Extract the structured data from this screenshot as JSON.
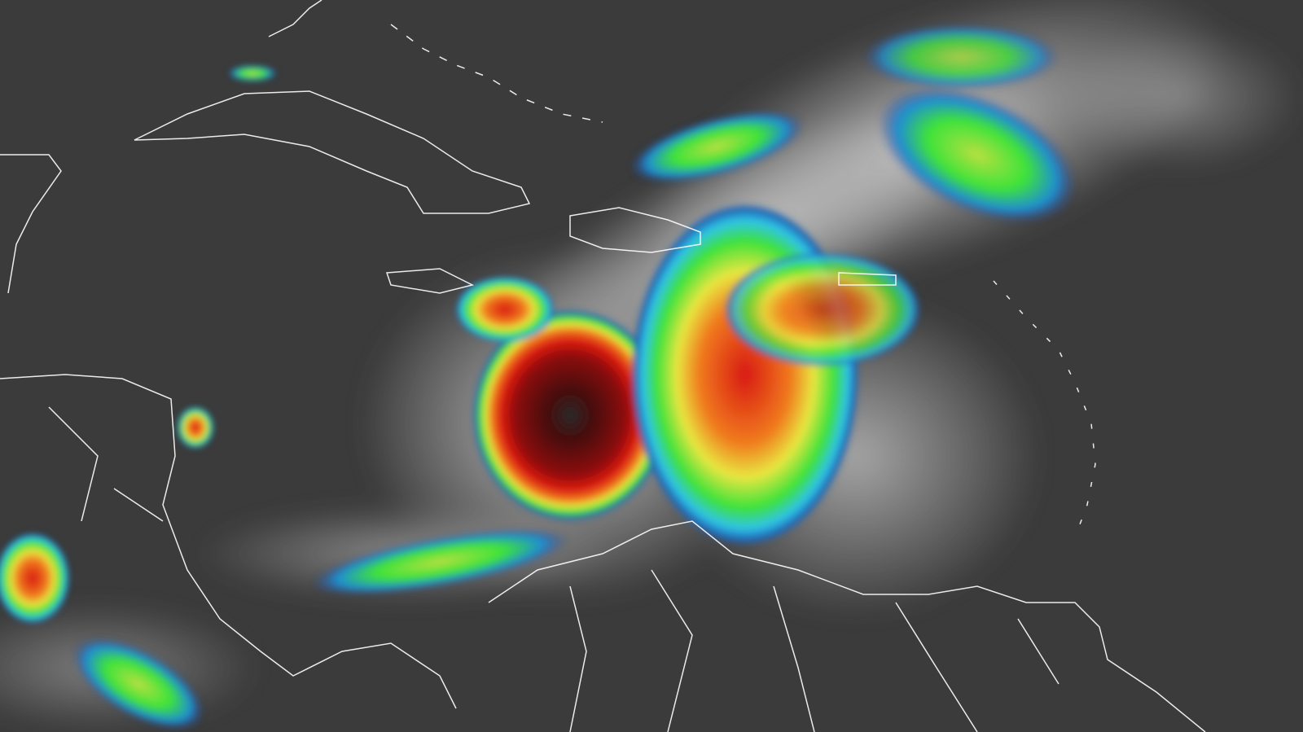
{
  "image": {
    "kind": "infrared satellite imagery with colour-enhanced cloud tops",
    "colors": {
      "background": "#3b3b3b",
      "cloud": "#bdbdbd",
      "blue": "#1f5fb0",
      "cyan": "#2fc4e8",
      "green": "#3ee23a",
      "yellow": "#e8e640",
      "orange": "#f07a1e",
      "red": "#d81a12",
      "darkred": "#5a0808",
      "borders": "#ffffff"
    }
  }
}
